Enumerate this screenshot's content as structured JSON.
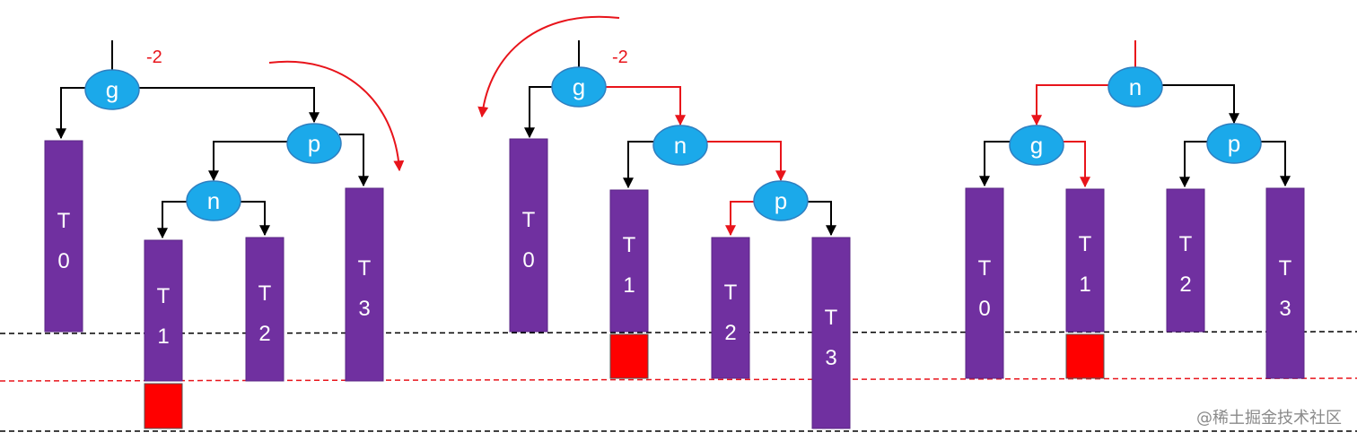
{
  "panels": [
    {
      "balance": "-2",
      "nodes": [
        "g",
        "p",
        "n"
      ],
      "subtrees": [
        "T0",
        "T1",
        "T2",
        "T3"
      ]
    },
    {
      "balance": "-2",
      "nodes": [
        "g",
        "n",
        "p"
      ],
      "subtrees": [
        "T0",
        "T1",
        "T2",
        "T3"
      ]
    },
    {
      "nodes": [
        "n",
        "g",
        "p"
      ],
      "subtrees": [
        "T0",
        "T1",
        "T2",
        "T3"
      ]
    }
  ],
  "watermark": "@稀土掘金技术社区"
}
